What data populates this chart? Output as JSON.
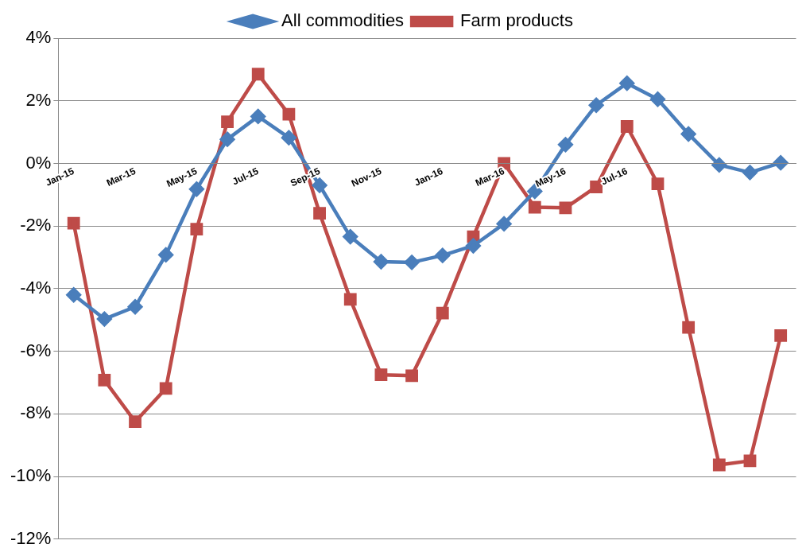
{
  "chart_data": {
    "type": "line",
    "categories": [
      "Jan-15",
      null,
      "Mar-15",
      null,
      "May-15",
      null,
      "Jul-15",
      null,
      "Sep-15",
      null,
      "Nov-15",
      null,
      "Jan-16",
      null,
      "Mar-16",
      null,
      "May-16",
      null,
      "Jul-16",
      null,
      null,
      null,
      null,
      null
    ],
    "series": [
      {
        "name": "All commodities",
        "color": "#4a7ebb",
        "marker": "diamond",
        "values": [
          -4.2,
          -4.97,
          -4.58,
          -2.92,
          -0.82,
          0.77,
          1.5,
          0.82,
          -0.7,
          -2.34,
          -3.14,
          -3.16,
          -2.94,
          -2.63,
          -1.93,
          -0.89,
          0.6,
          1.86,
          2.56,
          2.05,
          0.94,
          -0.05,
          -0.29,
          0.02
        ]
      },
      {
        "name": "Farm products",
        "color": "#be4b48",
        "marker": "square",
        "values": [
          -1.91,
          -6.92,
          -8.25,
          -7.19,
          -2.1,
          1.33,
          2.85,
          1.57,
          -1.59,
          -4.34,
          -6.75,
          -6.78,
          -4.78,
          -2.34,
          0.0,
          -1.4,
          -1.42,
          -0.75,
          1.18,
          -0.65,
          -5.24,
          -9.63,
          -9.5,
          -5.5
        ]
      }
    ],
    "ylim": [
      -12,
      4
    ],
    "yticks": [
      {
        "value": -12,
        "label": "-12%"
      },
      {
        "value": -10,
        "label": "-10%"
      },
      {
        "value": -8,
        "label": "-8%"
      },
      {
        "value": -6,
        "label": "-6%"
      },
      {
        "value": -4,
        "label": "-4%"
      },
      {
        "value": -2,
        "label": "-2%"
      },
      {
        "value": 0,
        "label": "0%"
      },
      {
        "value": 2,
        "label": "2%"
      },
      {
        "value": 4,
        "label": "4%"
      }
    ],
    "grid": "y",
    "legend": "top",
    "line_style": "solid"
  }
}
